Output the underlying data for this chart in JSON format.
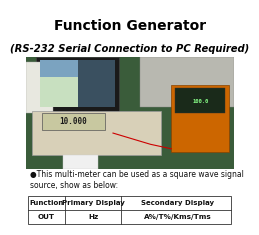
{
  "title_line1": "Function Generator",
  "title_line2": "(RS-232 Serial Connection to PC Required)",
  "bullet_text": "●This multi-meter can be used as a square wave signal\nsource, show as below:",
  "table_headers": [
    "Function",
    "Primary Display",
    "Secondary Display"
  ],
  "table_row": [
    "OUT",
    "Hz",
    "A%/T%/Κms/Tms"
  ],
  "bg_color": "#ffffff",
  "title_color": "#000000",
  "title1_fontsize": 10,
  "title2_fontsize": 7.2,
  "bullet_fontsize": 5.5,
  "table_fontsize": 5.5
}
